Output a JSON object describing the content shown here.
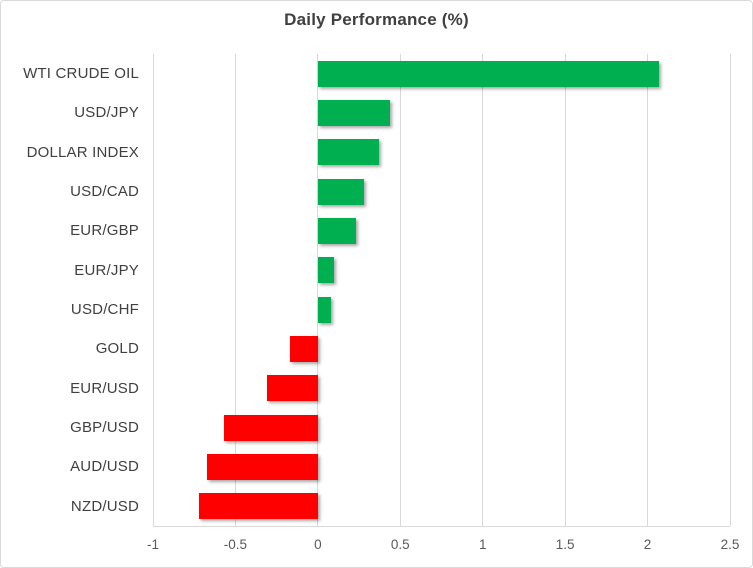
{
  "chart_data": {
    "type": "bar",
    "orientation": "horizontal",
    "title": "Daily Performance (%)",
    "categories": [
      "WTI CRUDE OIL",
      "USD/JPY",
      "DOLLAR INDEX",
      "USD/CAD",
      "EUR/GBP",
      "EUR/JPY",
      "USD/CHF",
      "GOLD",
      "EUR/USD",
      "GBP/USD",
      "AUD/USD",
      "NZD/USD"
    ],
    "values": [
      2.07,
      0.44,
      0.37,
      0.28,
      0.23,
      0.1,
      0.08,
      -0.17,
      -0.31,
      -0.57,
      -0.67,
      -0.72
    ],
    "xlabel": "",
    "ylabel": "",
    "xlim": [
      -1,
      2.5
    ],
    "x_ticks": [
      -1,
      -0.5,
      0,
      0.5,
      1,
      1.5,
      2,
      2.5
    ],
    "x_tick_labels": [
      "-1",
      "-0.5",
      "0",
      "0.5",
      "1",
      "1.5",
      "2",
      "2.5"
    ],
    "grid": true,
    "legend": false,
    "colors": {
      "positive": "#00B050",
      "negative": "#FF0000",
      "gridline": "#D9D9D9",
      "axis_line": "#D9D9D9",
      "title_text": "#404040",
      "category_text": "#404040",
      "tick_text": "#595959",
      "background": "#FFFFFF",
      "border": "#D9D9D9"
    }
  }
}
